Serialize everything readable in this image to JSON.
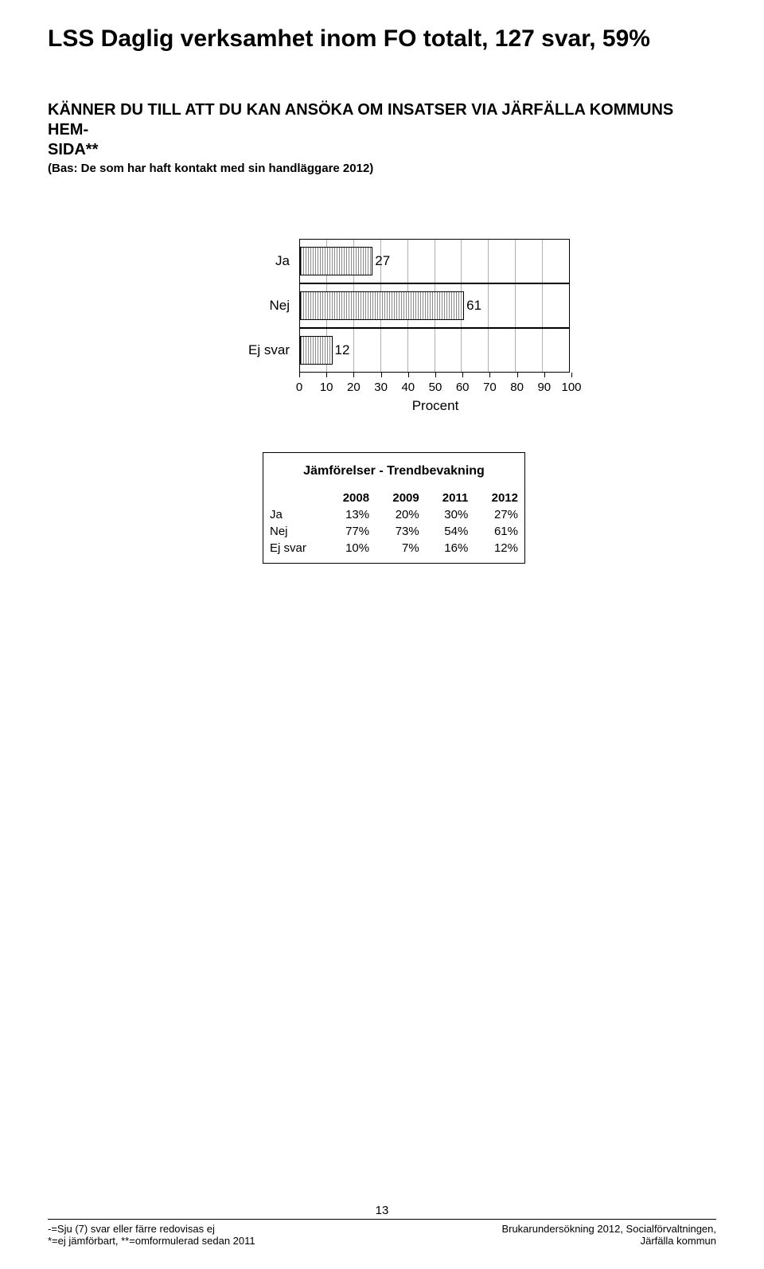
{
  "title": "LSS Daglig verksamhet inom FO totalt, 127 svar, 59%",
  "question_line1": "KÄNNER DU TILL ATT DU KAN ANSÖKA OM INSATSER VIA JÄRFÄLLA KOMMUNS HEM-",
  "question_line2": "SIDA**",
  "basis": "(Bas: De som har haft kontakt med sin handläggare 2012)",
  "chart": {
    "type": "bar",
    "categories": [
      "Ja",
      "Nej",
      "Ej svar"
    ],
    "values": [
      27,
      61,
      12
    ],
    "bar_color_pattern": "vertical-hatch",
    "bar_border": "#000000",
    "background_color": "#ffffff",
    "grid_color": "#b0b0b0",
    "xlim": [
      0,
      100
    ],
    "xticks": [
      0,
      10,
      20,
      30,
      40,
      50,
      60,
      70,
      80,
      90,
      100
    ],
    "xlabel": "Procent",
    "label_fontsize": 17
  },
  "table": {
    "title": "Jämförelser - Trendbevakning",
    "columns": [
      "",
      "2008",
      "2009",
      "2011",
      "2012"
    ],
    "rows": [
      [
        "Ja",
        "13%",
        "20%",
        "30%",
        "27%"
      ],
      [
        "Nej",
        "77%",
        "73%",
        "54%",
        "61%"
      ],
      [
        "Ej svar",
        "10%",
        "7%",
        "16%",
        "12%"
      ]
    ]
  },
  "footer": {
    "page": "13",
    "left1": "-=Sju (7) svar eller färre redovisas ej",
    "left2": "*=ej jämförbart, **=omformulerad sedan 2011",
    "right1": "Brukarundersökning 2012, Socialförvaltningen,",
    "right2": "Järfälla kommun"
  }
}
